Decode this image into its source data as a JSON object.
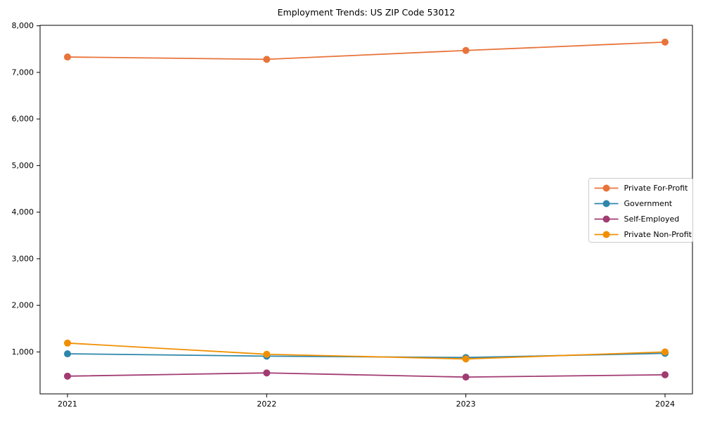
{
  "chart_data": {
    "type": "line",
    "title": "Employment Trends: US ZIP Code 53012",
    "xlabel": "",
    "ylabel": "",
    "categories": [
      "2021",
      "2022",
      "2023",
      "2024"
    ],
    "series": [
      {
        "name": "Private For-Profit",
        "color": "#E8743B",
        "values": [
          7330,
          7280,
          7470,
          7650
        ]
      },
      {
        "name": "Government",
        "color": "#2E86AB",
        "values": [
          960,
          910,
          880,
          970
        ]
      },
      {
        "name": "Self-Employed",
        "color": "#A23B72",
        "values": [
          480,
          550,
          460,
          510
        ]
      },
      {
        "name": "Private Non-Profit",
        "color": "#F18F01",
        "values": [
          1190,
          950,
          850,
          1000
        ]
      }
    ],
    "yticks": [
      1000,
      2000,
      3000,
      4000,
      5000,
      6000,
      7000,
      8000
    ],
    "ytick_labels": [
      "1,000",
      "2,000",
      "3,000",
      "4,000",
      "5,000",
      "6,000",
      "7,000",
      "8,000"
    ],
    "ylim": [
      100,
      8010
    ],
    "grid": false,
    "legend_position": "center right",
    "colors": {
      "axis": "#000000",
      "legend_border": "#cccccc",
      "background": "#ffffff"
    }
  }
}
